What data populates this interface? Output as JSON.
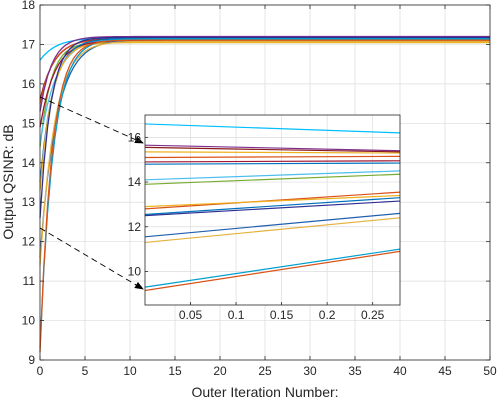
{
  "chart_data": [
    {
      "type": "line",
      "role": "main",
      "title": "",
      "xlabel": "Outer Iteration Number:",
      "ylabel": "Output QSINR: dB",
      "xlim": [
        0,
        50
      ],
      "ylim": [
        9,
        18
      ],
      "xticks": [
        0,
        5,
        10,
        15,
        20,
        25,
        30,
        35,
        40,
        45,
        50
      ],
      "yticks": [
        9,
        10,
        11,
        12,
        13,
        14,
        15,
        16,
        17,
        18
      ],
      "grid": true,
      "legend": "none",
      "series": [
        {
          "color": "#00BFFF",
          "start": 16.6,
          "final": 17.17
        },
        {
          "color": "#8B1A1A",
          "start": 15.6,
          "final": 17.15
        },
        {
          "color": "#D95319",
          "start": 15.5,
          "final": 17.12
        },
        {
          "color": "#7E2F8E",
          "start": 15.3,
          "final": 17.2
        },
        {
          "color": "#77AC30",
          "start": 14.4,
          "final": 17.05
        },
        {
          "color": "#4DBEEE",
          "start": 14.5,
          "final": 17.16
        },
        {
          "color": "#A2142F",
          "start": 14.9,
          "final": 17.1
        },
        {
          "color": "#0072BD",
          "start": 13.5,
          "final": 17.15
        },
        {
          "color": "#EDB120",
          "start": 13.3,
          "final": 17.05
        },
        {
          "color": "#2E3192",
          "start": 12.6,
          "final": 17.18
        },
        {
          "color": "#1F5FAF",
          "start": 11.6,
          "final": 17.13
        },
        {
          "color": "#E3B23C",
          "start": 11.4,
          "final": 17.08
        },
        {
          "color": "#00A0D0",
          "start": 9.3,
          "final": 17.14
        },
        {
          "color": "#D95319",
          "start": 9.2,
          "final": 17.11
        }
      ]
    },
    {
      "type": "line",
      "role": "inset",
      "title": "",
      "xlabel": "",
      "ylabel": "",
      "xlim": [
        0,
        0.28
      ],
      "ylim": [
        8.5,
        17
      ],
      "xticks": [
        0.05,
        0.1,
        0.15,
        0.2,
        0.25
      ],
      "yticks": [
        10,
        12,
        14,
        16
      ],
      "grid": true,
      "legend": "none",
      "series": [
        {
          "color": "#00BFFF",
          "x": [
            0,
            0.28
          ],
          "y": [
            16.6,
            16.2
          ]
        },
        {
          "color": "#7E2F8E",
          "x": [
            0,
            0.28
          ],
          "y": [
            15.65,
            15.4
          ]
        },
        {
          "color": "#8B1A1A",
          "x": [
            0,
            0.28
          ],
          "y": [
            15.55,
            15.35
          ]
        },
        {
          "color": "#EDB120",
          "x": [
            0,
            0.28
          ],
          "y": [
            15.35,
            15.3
          ]
        },
        {
          "color": "#D95319",
          "x": [
            0,
            0.28
          ],
          "y": [
            15.1,
            15.15
          ]
        },
        {
          "color": "#A2142F",
          "x": [
            0,
            0.28
          ],
          "y": [
            14.9,
            14.95
          ]
        },
        {
          "color": "#0072BD",
          "x": [
            0,
            0.28
          ],
          "y": [
            14.8,
            14.85
          ]
        },
        {
          "color": "#4DBEEE",
          "x": [
            0,
            0.28
          ],
          "y": [
            14.1,
            14.5
          ]
        },
        {
          "color": "#77AC30",
          "x": [
            0,
            0.28
          ],
          "y": [
            13.9,
            14.35
          ]
        },
        {
          "color": "#D95319",
          "x": [
            0,
            0.28
          ],
          "y": [
            12.8,
            13.55
          ]
        },
        {
          "color": "#EDB120",
          "x": [
            0,
            0.28
          ],
          "y": [
            12.9,
            13.4
          ]
        },
        {
          "color": "#0072BD",
          "x": [
            0,
            0.28
          ],
          "y": [
            12.55,
            13.3
          ]
        },
        {
          "color": "#2E3192",
          "x": [
            0,
            0.28
          ],
          "y": [
            12.5,
            13.15
          ]
        },
        {
          "color": "#1F5FAF",
          "x": [
            0,
            0.28
          ],
          "y": [
            11.55,
            12.6
          ]
        },
        {
          "color": "#E3B23C",
          "x": [
            0,
            0.28
          ],
          "y": [
            11.3,
            12.4
          ]
        },
        {
          "color": "#00A0D0",
          "x": [
            0,
            0.28
          ],
          "y": [
            9.3,
            11.0
          ]
        },
        {
          "color": "#D95319",
          "x": [
            0,
            0.28
          ],
          "y": [
            9.15,
            10.9
          ]
        }
      ]
    }
  ]
}
